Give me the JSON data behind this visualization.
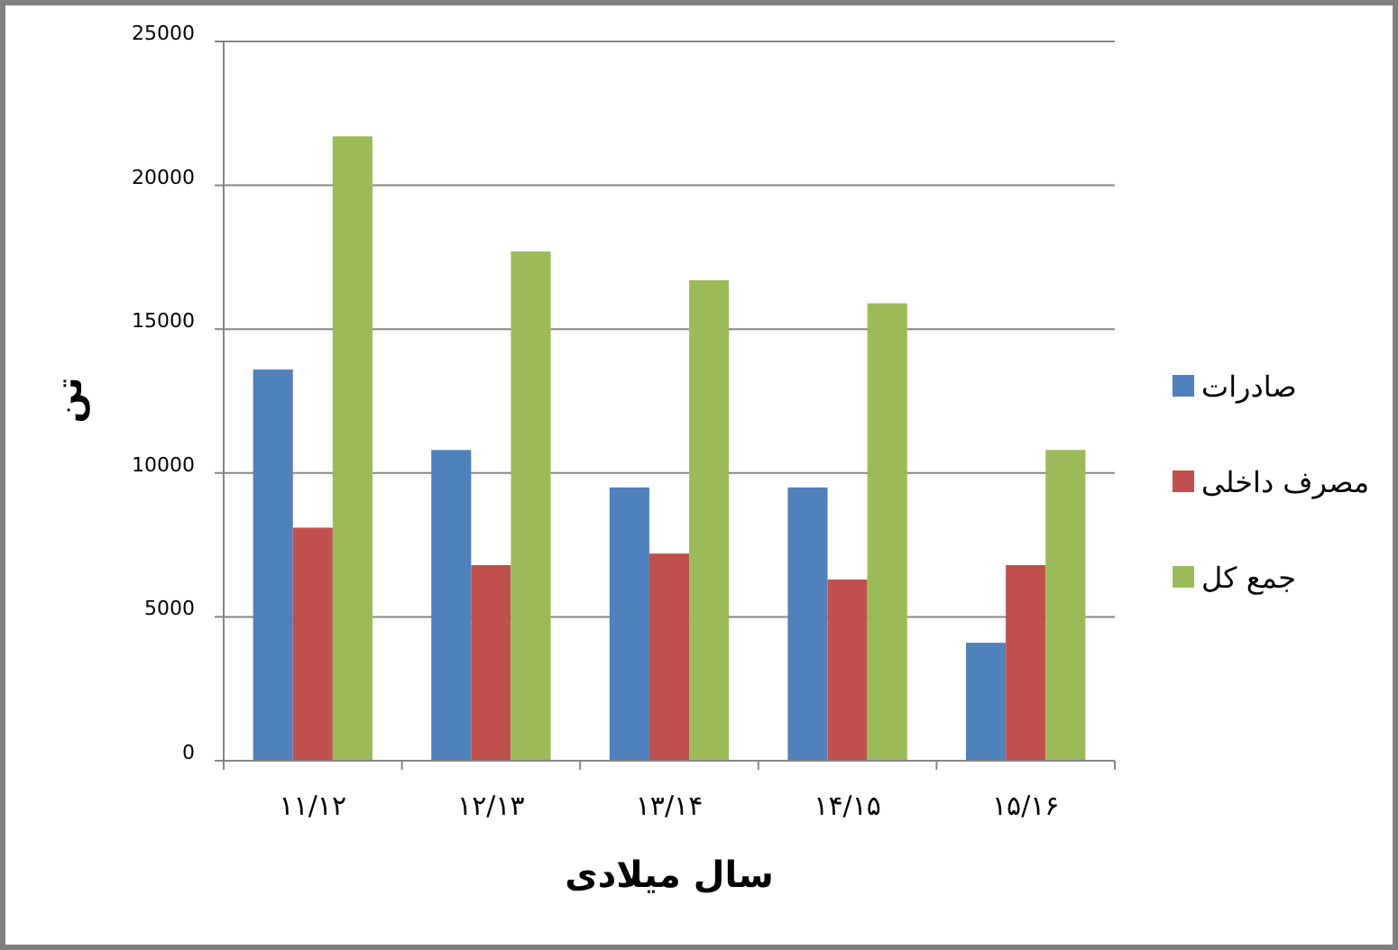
{
  "chart_data": {
    "type": "bar",
    "xlabel": "سال میلادی",
    "ylabel": "تن",
    "categories": [
      "۱۱/۱۲",
      "۱۲/۱۳",
      "۱۳/۱۴",
      "۱۴/۱۵",
      "۱۵/۱۶"
    ],
    "series": [
      {
        "name": "صادرات",
        "color": "#4f81bd",
        "values": [
          13600,
          10800,
          9500,
          9500,
          4100
        ]
      },
      {
        "name": "مصرف داخلی",
        "color": "#c0504d",
        "values": [
          8100,
          6800,
          7200,
          6300,
          6800
        ]
      },
      {
        "name": "جمع کل",
        "color": "#9bbb59",
        "values": [
          21700,
          17700,
          16700,
          15900,
          10800
        ]
      }
    ],
    "ylim": [
      0,
      25000
    ],
    "yticks": [
      0,
      5000,
      10000,
      15000,
      20000,
      25000
    ],
    "grid": "y",
    "legend": "right"
  }
}
